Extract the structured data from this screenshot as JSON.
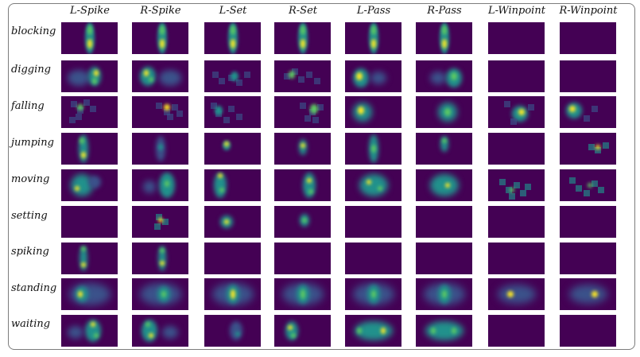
{
  "columns": [
    "L-Spike",
    "R-Spike",
    "L-Set",
    "R-Set",
    "L-Pass",
    "R-Pass",
    "L-Winpoint",
    "R-Winpoint"
  ],
  "rows": [
    "blocking",
    "digging",
    "falling",
    "jumping",
    "moving",
    "setting",
    "spiking",
    "standing",
    "waiting"
  ],
  "colors": {
    "background_cell": "#440154",
    "low": "#3b528b",
    "mid": "#21918c",
    "high": "#5ec962",
    "peak": "#fde725"
  }
}
